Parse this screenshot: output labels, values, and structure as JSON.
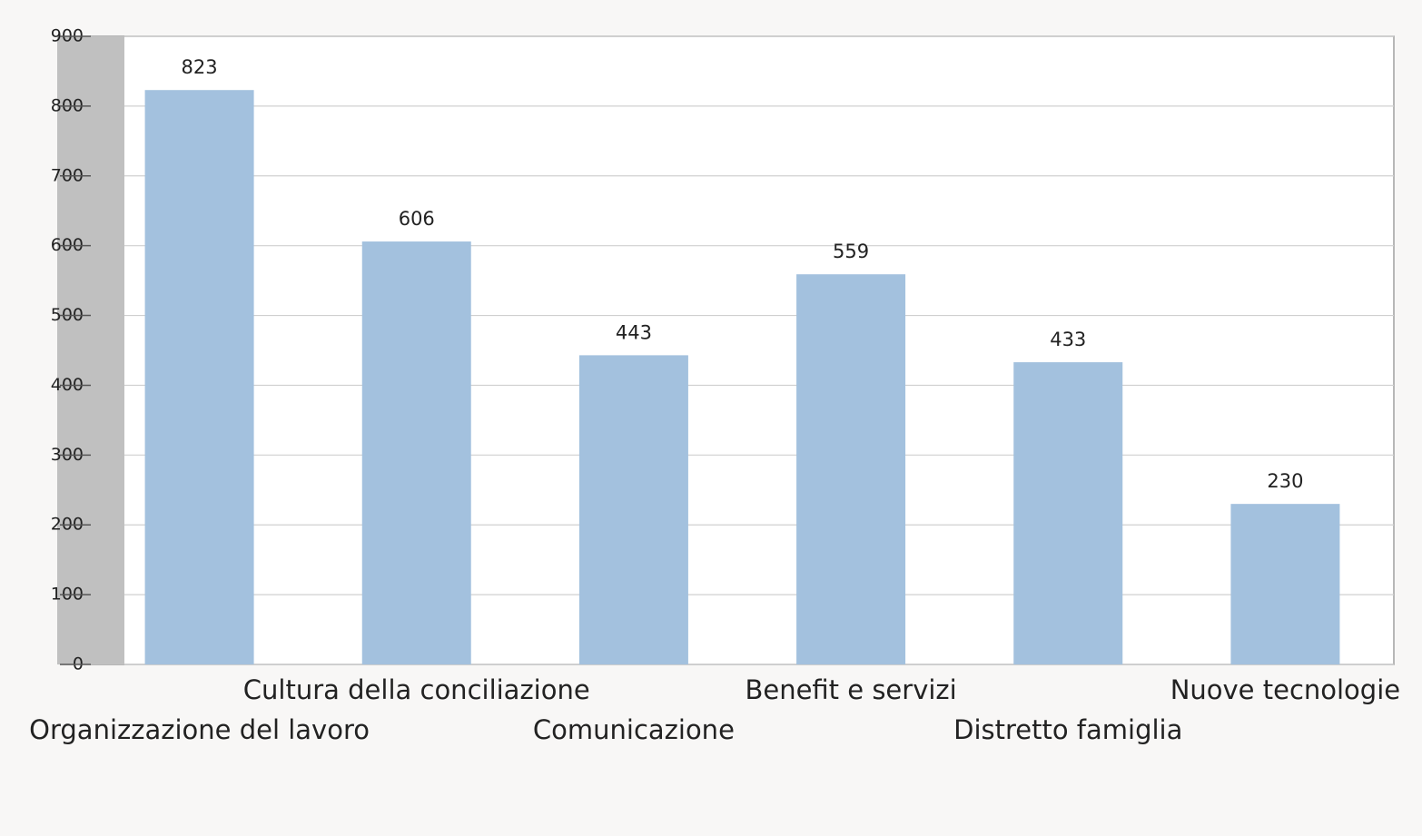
{
  "chart_data": {
    "type": "bar",
    "categories": [
      "Organizzazione del lavoro",
      "Cultura della conciliazione",
      "Comunicazione",
      "Benefit e servizi",
      "Distretto famiglia",
      "Nuove tecnologie"
    ],
    "values": [
      823,
      606,
      443,
      559,
      433,
      230
    ],
    "color": "#a3c1de",
    "ylim": [
      0,
      900
    ],
    "yticks": [
      0,
      100,
      200,
      300,
      400,
      500,
      600,
      700,
      800,
      900
    ],
    "grid": true
  }
}
